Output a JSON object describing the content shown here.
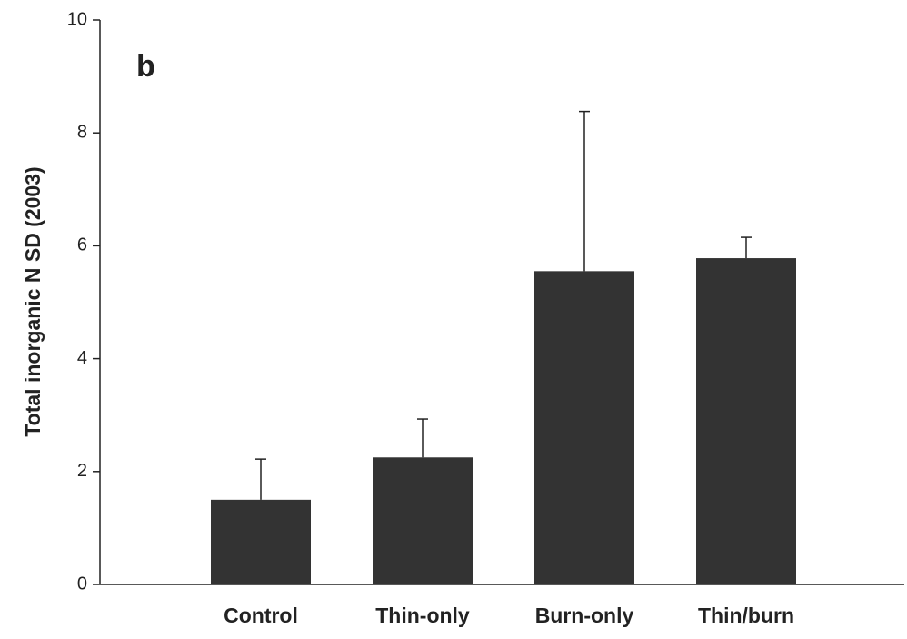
{
  "chart_data": {
    "type": "bar",
    "annotation": "b",
    "ylabel": "Total inorganic N SD (2003)",
    "categories": [
      "Control",
      "Thin-only",
      "Burn-only",
      "Thin/burn"
    ],
    "values": [
      1.5,
      2.25,
      5.55,
      5.78
    ],
    "errors": [
      0.72,
      0.68,
      2.83,
      0.37
    ],
    "color": "#333333",
    "ylim": [
      0,
      10
    ],
    "yticks": [
      0,
      2,
      4,
      6,
      8,
      10
    ],
    "grid": false
  }
}
